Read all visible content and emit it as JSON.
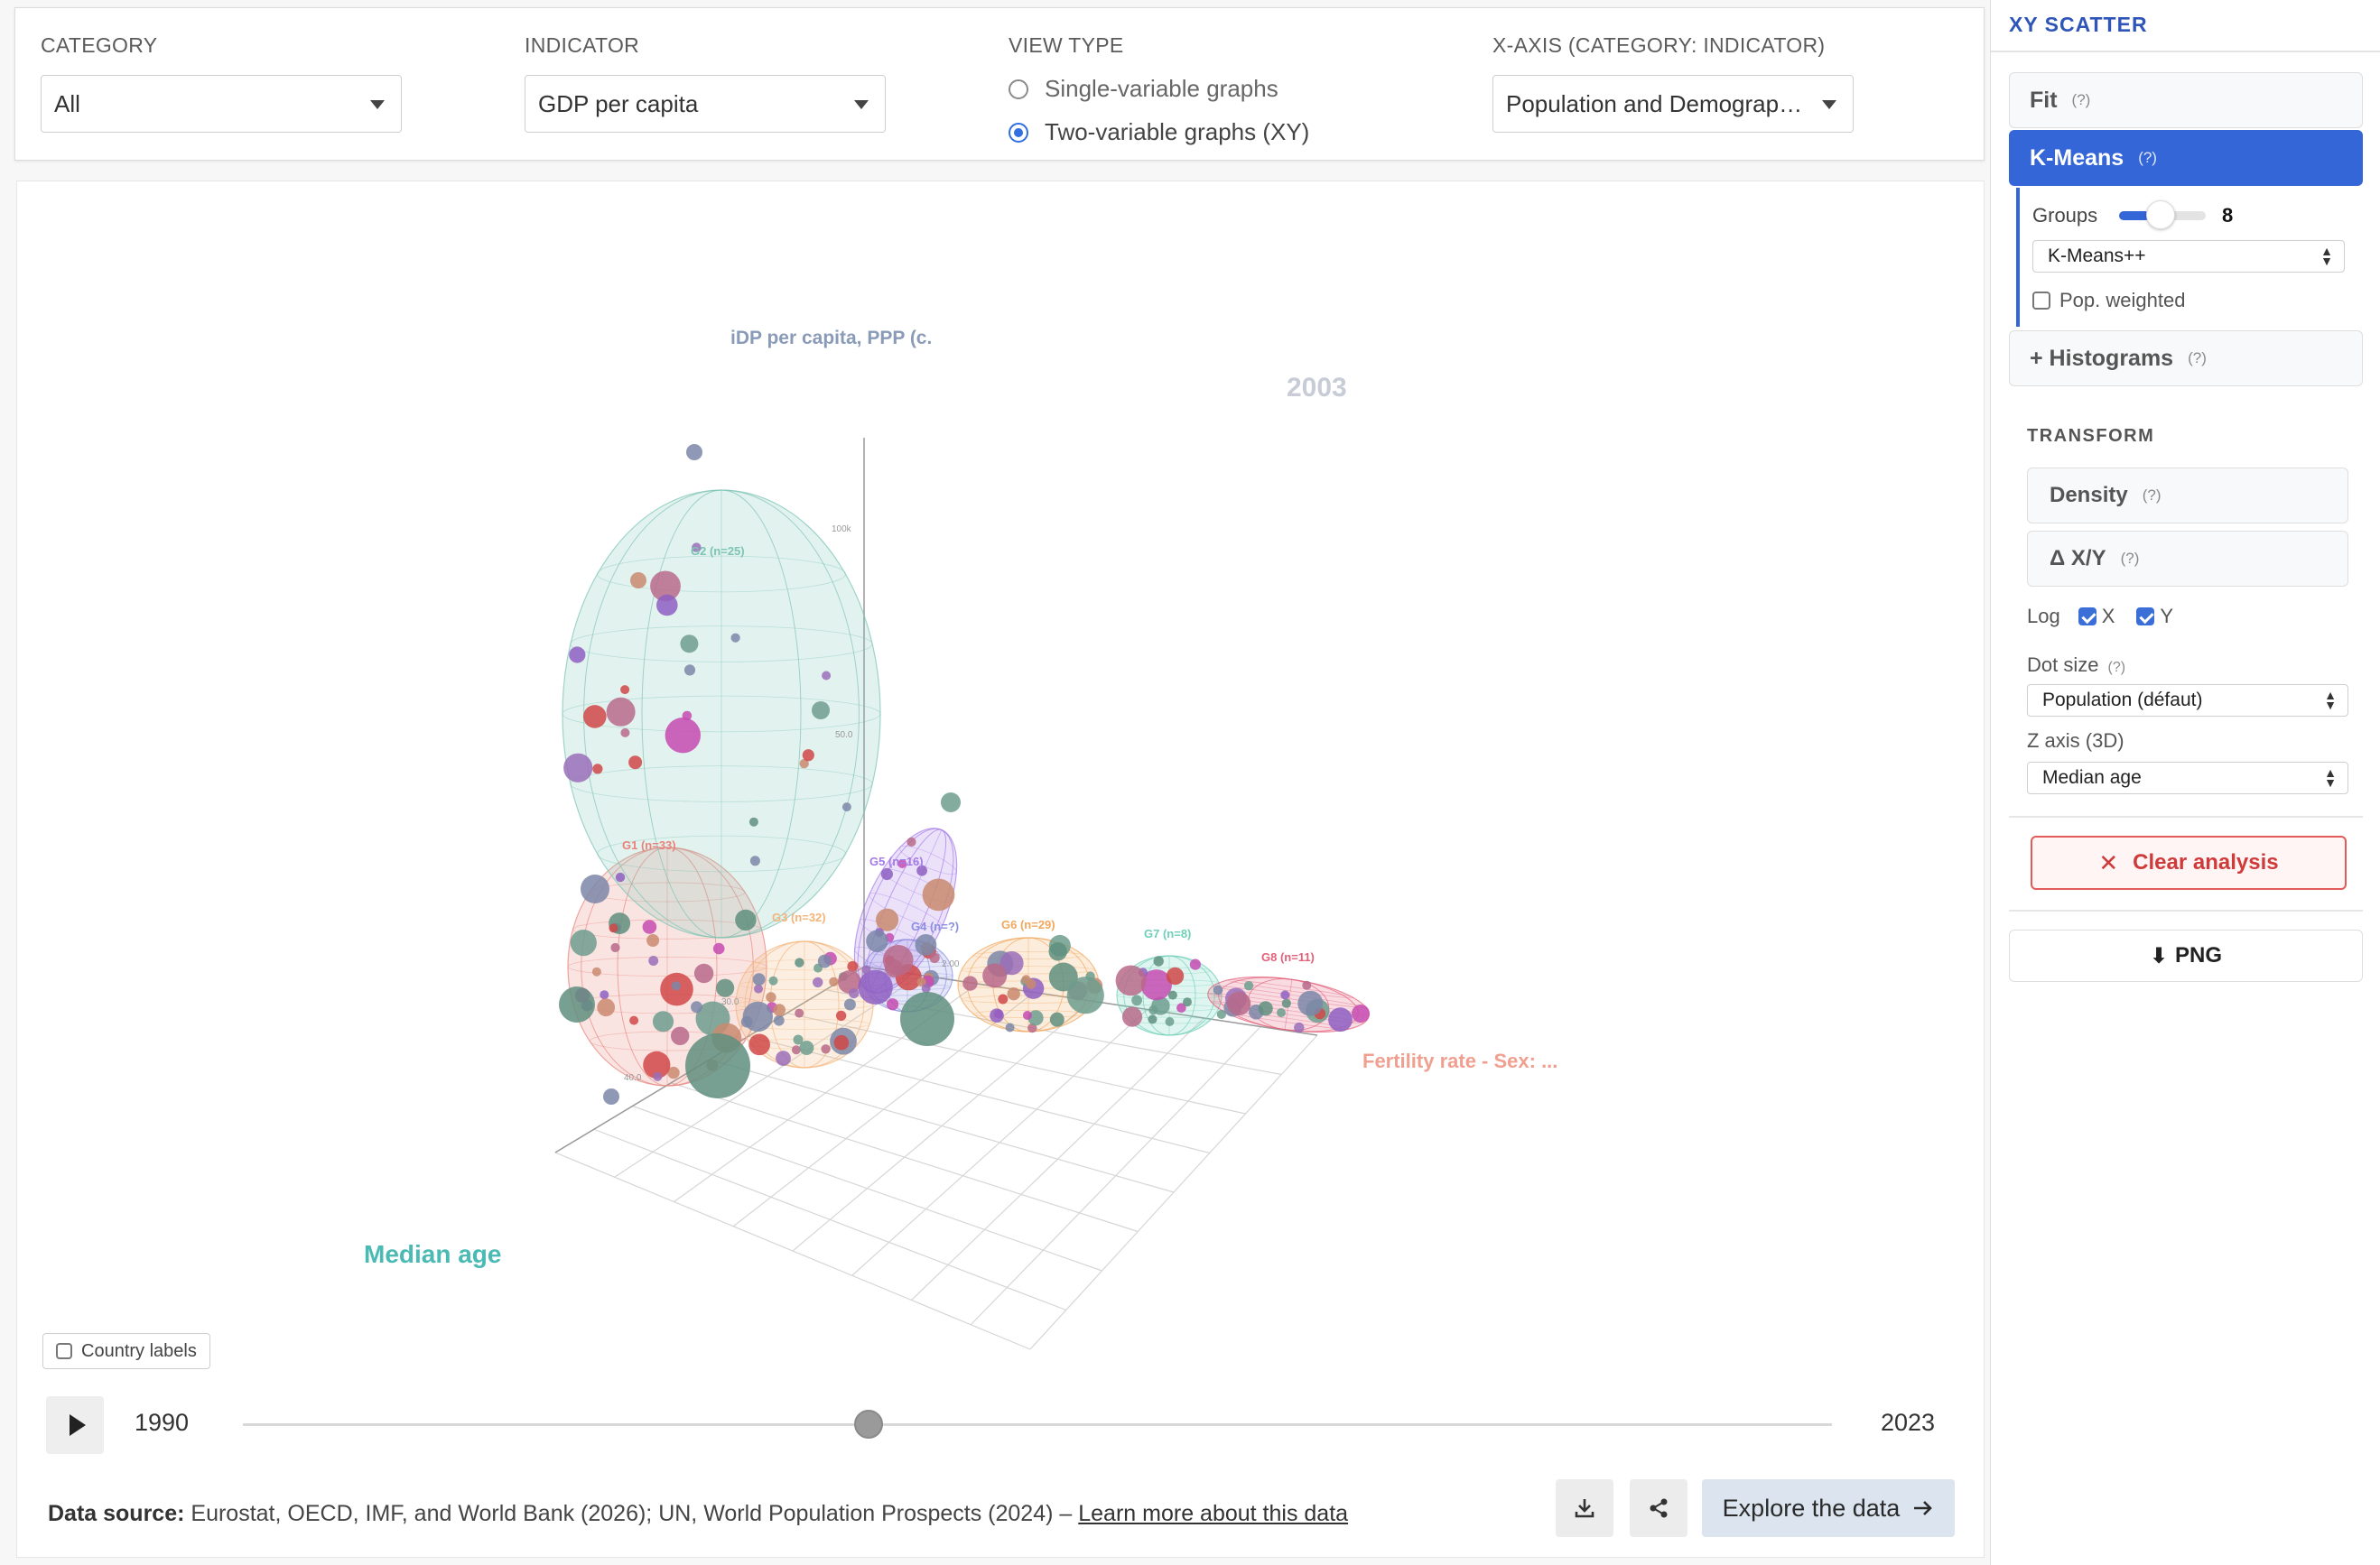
{
  "controls": {
    "category": {
      "label": "CATEGORY",
      "value": "All"
    },
    "indicator": {
      "label": "INDICATOR",
      "value": "GDP per capita"
    },
    "view_type": {
      "label": "VIEW TYPE",
      "option_single": "Single-variable graphs",
      "option_xy": "Two-variable graphs (XY)",
      "selected": "xy"
    },
    "x_axis": {
      "label": "X-AXIS (CATEGORY: INDICATOR)",
      "value": "Population and Demograph..."
    }
  },
  "chart": {
    "year_overlay": "2003",
    "y_axis_label": "iDP per capita, PPP (c.",
    "x_axis_label": "Fertility rate - Sex: ...",
    "z_axis_label": "Median age",
    "country_labels": "Country labels",
    "ticks": {
      "y_100k": "100k",
      "y_mid": "50.0",
      "z_40": "40.0",
      "z_30": "30.0",
      "x_2": "2.00"
    }
  },
  "chart_data": {
    "type": "scatter",
    "title": "",
    "dimensions": "3d",
    "year": 2003,
    "x_label": "Fertility rate - Sex: ...",
    "y_label": "iDP per capita, PPP (c.",
    "z_label": "Median age",
    "log_x": true,
    "log_y": true,
    "clusters": [
      {
        "name": "G1 (n=33)",
        "color": "#e8837a"
      },
      {
        "name": "G2 (n=25)",
        "color": "#7cc4b4"
      },
      {
        "name": "G3 (n=32)",
        "color": "#f3b47a"
      },
      {
        "name": "G4 (n=?)",
        "color": "#8a8fe0"
      },
      {
        "name": "G5 (n=16)",
        "color": "#a57ae6"
      },
      {
        "name": "G6 (n=29)",
        "color": "#f1a85e"
      },
      {
        "name": "G7 (n=8)",
        "color": "#6fd0b8"
      },
      {
        "name": "G8 (n=11)",
        "color": "#e2607a"
      }
    ]
  },
  "timeline": {
    "start": "1990",
    "end": "2023",
    "current": 2003,
    "min": 1990,
    "max": 2023
  },
  "footer": {
    "source_label": "Data source:",
    "source_text": " Eurostat, OECD, IMF, and World Bank (2026); UN, World Population Prospects (2024) – ",
    "source_link": "Learn more about this data",
    "explore": "Explore the data"
  },
  "side": {
    "title": "XY SCATTER",
    "fit": "Fit",
    "kmeans": "K-Means",
    "help": "(?)",
    "groups_label": "Groups",
    "groups_value": "8",
    "groups_fraction": 0.35,
    "init_method": "K-Means++",
    "pop_weighted": "Pop. weighted",
    "histograms": "+ Histograms",
    "transform": "TRANSFORM",
    "density": "Density",
    "delta": "Δ X/Y",
    "log_label": "Log",
    "log_x": "X",
    "log_y": "Y",
    "dot_size_label": "Dot size",
    "dot_size_value": "Population (défaut)",
    "z_axis_label": "Z axis (3D)",
    "z_axis_value": "Median age",
    "clear": "Clear analysis",
    "png": "PNG",
    "colors": {
      "accent": "#3466d8",
      "danger": "#cf3a3a"
    }
  }
}
